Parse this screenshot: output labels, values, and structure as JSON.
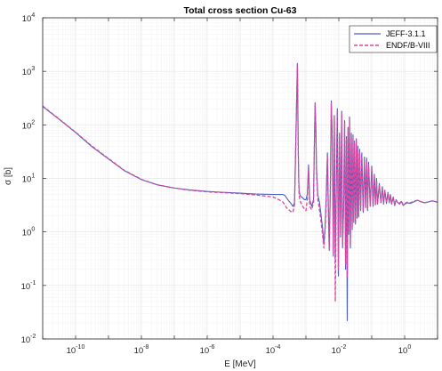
{
  "chart_data": {
    "type": "line",
    "title": "Total cross section Cu-63",
    "xlabel": "E [MeV]",
    "ylabel": "σ [b]",
    "x_scale": "log",
    "y_scale": "log",
    "xlim": [
      1e-11,
      10
    ],
    "ylim": [
      0.01,
      10000
    ],
    "grid": true,
    "minor_grid": true,
    "legend_position": "top-right",
    "x_ticks": [
      {
        "value": 1e-10,
        "base": "10",
        "exp": "-10"
      },
      {
        "value": 1e-08,
        "base": "10",
        "exp": "-8"
      },
      {
        "value": 1e-06,
        "base": "10",
        "exp": "-6"
      },
      {
        "value": 0.0001,
        "base": "10",
        "exp": "-4"
      },
      {
        "value": 0.01,
        "base": "10",
        "exp": "-2"
      },
      {
        "value": 1,
        "base": "10",
        "exp": "0"
      }
    ],
    "y_ticks": [
      {
        "value": 0.01,
        "base": "10",
        "exp": "-2"
      },
      {
        "value": 0.1,
        "base": "10",
        "exp": "-1"
      },
      {
        "value": 1,
        "base": "10",
        "exp": "0"
      },
      {
        "value": 10,
        "base": "10",
        "exp": "1"
      },
      {
        "value": 100,
        "base": "10",
        "exp": "2"
      },
      {
        "value": 1000,
        "base": "10",
        "exp": "3"
      },
      {
        "value": 10000,
        "base": "10",
        "exp": "4"
      }
    ],
    "series": [
      {
        "name": "JEFF-3.1.1",
        "color": "#4a5ec2",
        "style": "solid",
        "x": [
          1e-11,
          3e-11,
          1e-10,
          3e-10,
          1e-09,
          3e-09,
          1e-08,
          3e-08,
          1e-07,
          3e-07,
          1e-06,
          3e-06,
          1e-05,
          3e-05,
          0.0001,
          0.00015,
          0.0002,
          0.00023,
          0.00026,
          0.0003,
          0.00035,
          0.0004,
          0.00045,
          0.0005,
          0.00055,
          0.00058,
          0.0006,
          0.00062,
          0.00065,
          0.0007,
          0.0008,
          0.0009,
          0.001,
          0.0011,
          0.0012,
          0.0013,
          0.0015,
          0.0017,
          0.0018,
          0.0019,
          0.002,
          0.0021,
          0.0023,
          0.0026,
          0.0029,
          0.0032,
          0.0035,
          0.0038,
          0.0041,
          0.0045,
          0.0048,
          0.0051,
          0.0055,
          0.0059,
          0.0063,
          0.0068,
          0.0073,
          0.0078,
          0.0084,
          0.009,
          0.0097,
          0.0105,
          0.0113,
          0.0122,
          0.013,
          0.014,
          0.015,
          0.016,
          0.017,
          0.018,
          0.019,
          0.02,
          0.0212,
          0.0225,
          0.024,
          0.0255,
          0.027,
          0.0285,
          0.03,
          0.032,
          0.034,
          0.036,
          0.038,
          0.04,
          0.043,
          0.046,
          0.05,
          0.055,
          0.06,
          0.065,
          0.07,
          0.075,
          0.08,
          0.09,
          0.1,
          0.11,
          0.12,
          0.13,
          0.14,
          0.15,
          0.17,
          0.19,
          0.21,
          0.23,
          0.25,
          0.28,
          0.31,
          0.34,
          0.37,
          0.4,
          0.45,
          0.5,
          0.55,
          0.6,
          0.7,
          0.8,
          0.9,
          1,
          1.2,
          1.5,
          2,
          2.5,
          3,
          4,
          5,
          7,
          10
        ],
        "y": [
          220,
          130,
          72,
          40,
          23,
          14,
          9.5,
          7.6,
          6.6,
          6.1,
          5.7,
          5.5,
          5.3,
          5.1,
          5.0,
          5.0,
          5.0,
          4.8,
          4.3,
          3.8,
          3.4,
          3.0,
          3.5,
          80,
          1400,
          50,
          12,
          6,
          5.0,
          4.6,
          4.3,
          4.0,
          4.0,
          5,
          18,
          4,
          3.0,
          4,
          40,
          260,
          90,
          15,
          5,
          3.5,
          2,
          1.2,
          0.6,
          1.2,
          4,
          30,
          3,
          0.45,
          6,
          280,
          60,
          0.35,
          150,
          0.3,
          8,
          200,
          0.15,
          70,
          0.8,
          180,
          0.5,
          3,
          120,
          0.2,
          60,
          0.022,
          90,
          0.9,
          140,
          0.5,
          70,
          1.1,
          65,
          1.5,
          50,
          1.4,
          55,
          1.8,
          40,
          1.9,
          35,
          2.5,
          30,
          2.3,
          25,
          2.8,
          24,
          2.5,
          20,
          3,
          17,
          3,
          12,
          3.2,
          10,
          3.3,
          8,
          3.5,
          7,
          3.3,
          6,
          3.4,
          5.5,
          3.5,
          5.0,
          3.3,
          4.5,
          3.1,
          4.0,
          3.6,
          3.3,
          3.7,
          3.1,
          3.3,
          3.5,
          3.4,
          3.7,
          3.9,
          3.7,
          3.5,
          3.6,
          3.8,
          3.6
        ]
      },
      {
        "name": "ENDF/B-VIII",
        "color": "#d9489c",
        "style": "dashed",
        "x": [
          1e-11,
          3e-11,
          1e-10,
          3e-10,
          1e-09,
          3e-09,
          1e-08,
          3e-08,
          1e-07,
          3e-07,
          1e-06,
          3e-06,
          1e-05,
          3e-05,
          0.0001,
          0.00015,
          0.0002,
          0.00023,
          0.00026,
          0.0003,
          0.00035,
          0.0004,
          0.00045,
          0.0005,
          0.00055,
          0.00058,
          0.0006,
          0.00062,
          0.00065,
          0.0007,
          0.0008,
          0.0009,
          0.001,
          0.0011,
          0.0012,
          0.0013,
          0.0015,
          0.0017,
          0.0018,
          0.0019,
          0.002,
          0.0021,
          0.0023,
          0.0026,
          0.0029,
          0.0032,
          0.0035,
          0.0038,
          0.0041,
          0.0045,
          0.0048,
          0.0051,
          0.0055,
          0.0059,
          0.0063,
          0.0068,
          0.0073,
          0.0078,
          0.0084,
          0.009,
          0.0097,
          0.0105,
          0.0113,
          0.0122,
          0.013,
          0.014,
          0.015,
          0.016,
          0.017,
          0.018,
          0.019,
          0.02,
          0.0212,
          0.0225,
          0.024,
          0.0255,
          0.027,
          0.0285,
          0.03,
          0.032,
          0.034,
          0.036,
          0.038,
          0.04,
          0.043,
          0.046,
          0.05,
          0.055,
          0.06,
          0.065,
          0.07,
          0.075,
          0.08,
          0.09,
          0.1,
          0.11,
          0.12,
          0.13,
          0.14,
          0.15,
          0.17,
          0.19,
          0.21,
          0.23,
          0.25,
          0.28,
          0.31,
          0.34,
          0.37,
          0.4,
          0.45,
          0.5,
          0.55,
          0.6,
          0.7,
          0.8,
          0.9,
          1,
          1.2,
          1.5,
          2,
          2.5,
          3,
          4,
          5,
          7,
          10
        ],
        "y": [
          225,
          132,
          73,
          41,
          23.5,
          14.2,
          9.6,
          7.6,
          6.6,
          6.0,
          5.6,
          5.4,
          5.2,
          4.9,
          4.5,
          4.0,
          3.6,
          3.2,
          2.8,
          2.6,
          2.4,
          2.3,
          3.2,
          70,
          1300,
          45,
          10,
          5,
          4.0,
          3.5,
          3.0,
          2.7,
          2.5,
          4,
          15,
          3,
          2.6,
          3.5,
          35,
          240,
          80,
          12,
          4,
          2.5,
          1.5,
          0.9,
          0.5,
          1.0,
          3,
          25,
          2.5,
          0.5,
          5,
          250,
          50,
          0.4,
          140,
          0.05,
          7,
          180,
          0.2,
          60,
          0.9,
          160,
          0.6,
          3,
          110,
          0.25,
          55,
          0.15,
          80,
          1.0,
          120,
          0.6,
          60,
          1.2,
          55,
          1.6,
          45,
          1.5,
          50,
          1.9,
          35,
          2.0,
          30,
          2.6,
          26,
          2.4,
          22,
          2.9,
          21,
          2.6,
          18,
          3.1,
          15,
          3.1,
          11,
          3.3,
          9,
          3.4,
          7.5,
          3.6,
          6.5,
          3.4,
          5.8,
          3.5,
          5.2,
          3.6,
          4.8,
          3.4,
          4.3,
          3.2,
          3.9,
          3.7,
          3.4,
          3.8,
          3.2,
          3.4,
          3.6,
          3.5,
          3.8,
          3.9,
          3.7,
          3.5,
          3.6,
          3.8,
          3.6
        ]
      }
    ]
  },
  "colors": {
    "axis": "#262626",
    "grid": "#e6e6e6",
    "minor_grid": "#f2f2f2",
    "background": "#ffffff"
  }
}
